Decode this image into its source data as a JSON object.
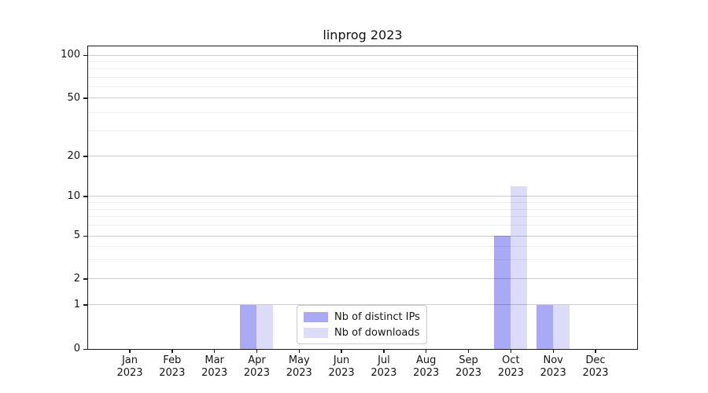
{
  "chart_data": {
    "type": "bar",
    "title": "linprog 2023",
    "months": [
      "Jan",
      "Feb",
      "Mar",
      "Apr",
      "May",
      "Jun",
      "Jul",
      "Aug",
      "Sep",
      "Oct",
      "Nov",
      "Dec"
    ],
    "year_label": "2023",
    "series": [
      {
        "name": "Nb of distinct IPs",
        "color": "#a9a9f6",
        "values": [
          0,
          0,
          0,
          1,
          0,
          0,
          0,
          0,
          0,
          5,
          1,
          0
        ]
      },
      {
        "name": "Nb of downloads",
        "color": "#dcdcf9",
        "values": [
          0,
          0,
          0,
          1,
          0,
          0,
          0,
          0,
          0,
          12,
          1,
          0
        ]
      }
    ],
    "yscale": "symlog",
    "yticks_major": [
      0,
      1,
      2,
      5,
      10,
      20,
      50,
      100
    ],
    "yticks_minor": [
      3,
      4,
      6,
      7,
      8,
      9,
      30,
      40,
      60,
      70,
      80,
      90
    ],
    "ylim": [
      0,
      115
    ],
    "grid": true,
    "legend_position": "lower center"
  }
}
